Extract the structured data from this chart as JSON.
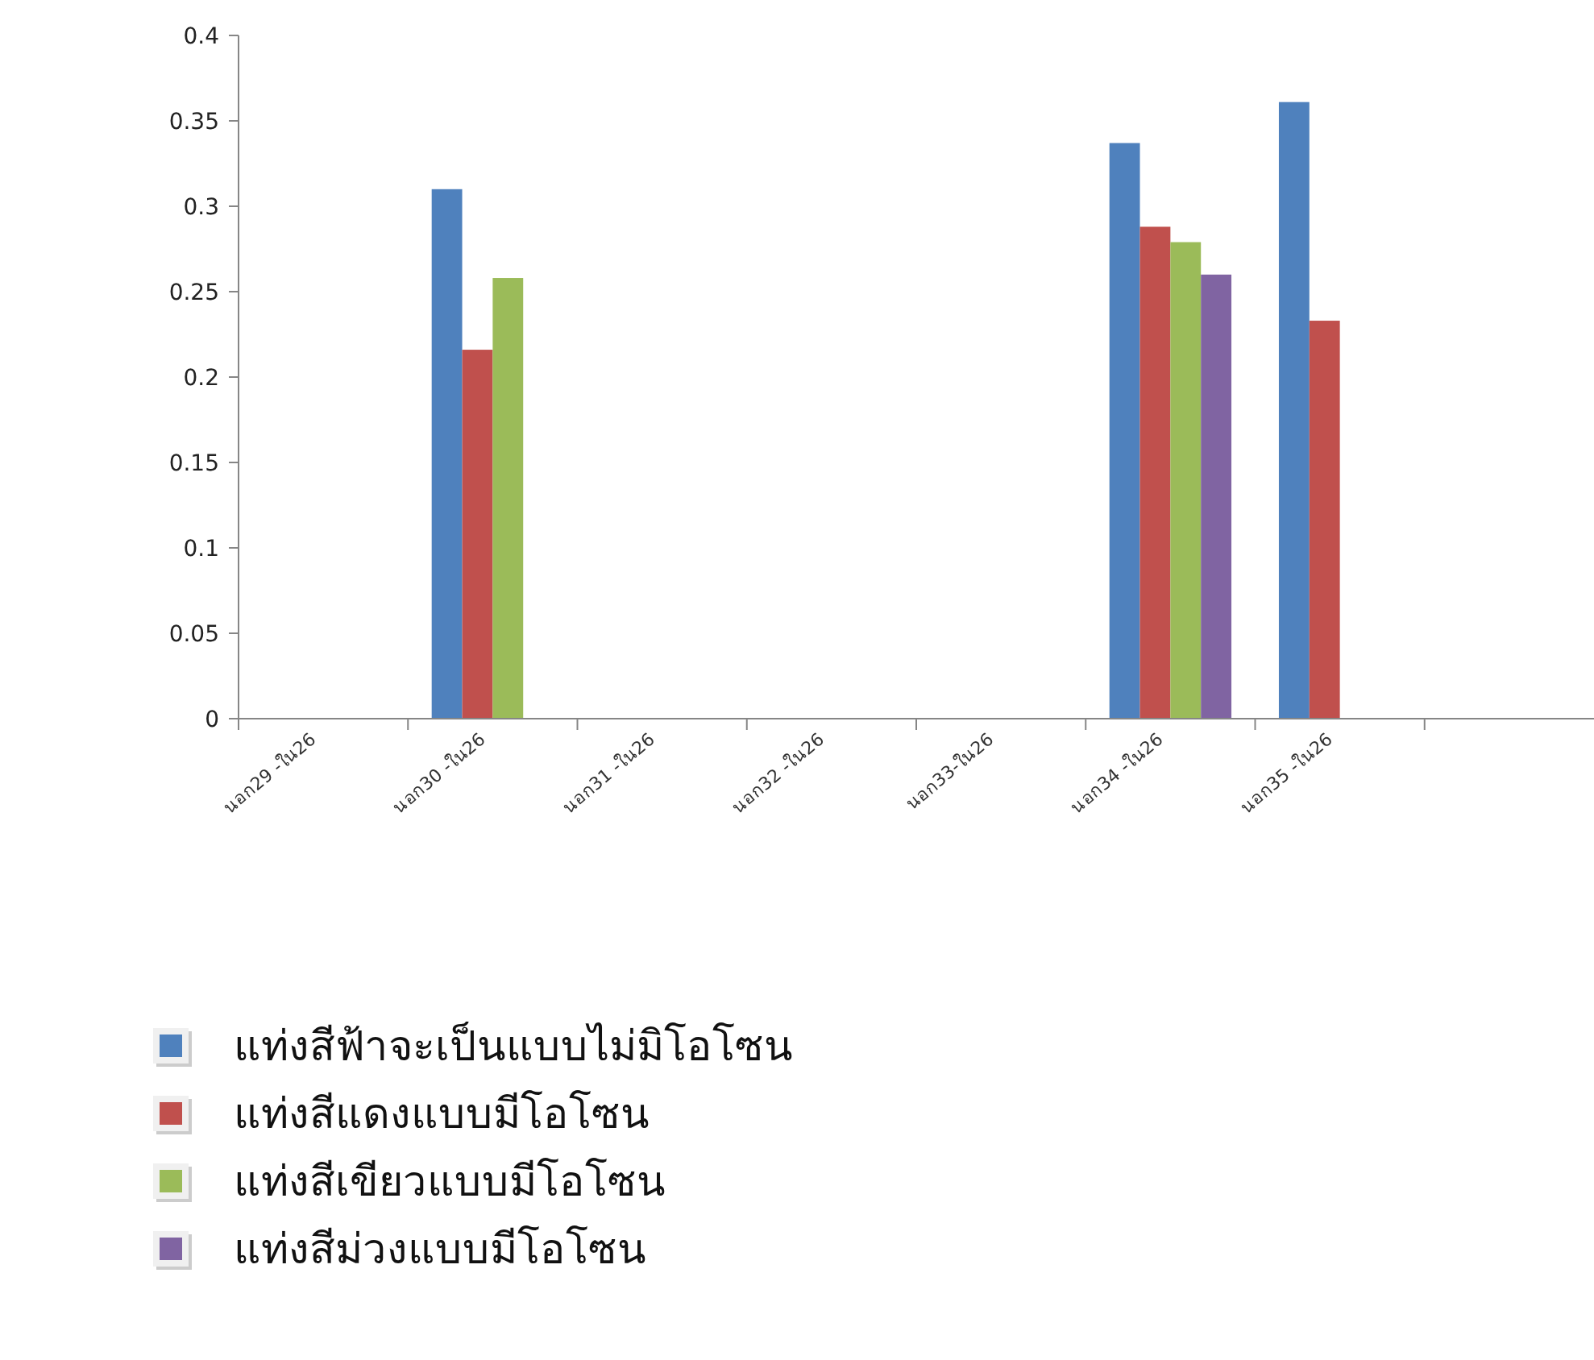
{
  "chart_data": {
    "type": "bar",
    "categories": [
      "นอก29 -ใน26",
      "นอก30 -ใน26",
      "นอก31 -ใน26",
      "นอก32 -ใน26",
      "นอก33-ใน26",
      "นอก34 -ใน26",
      "นอก35 -ใน26",
      null
    ],
    "series": [
      {
        "name": "แท่งสีฟ้าจะเป็นแบบไม่มิโอโซน",
        "color": "#4f81bd",
        "values": [
          null,
          0.31,
          null,
          null,
          null,
          0.337,
          0.361,
          null
        ]
      },
      {
        "name": "แท่งสีแดงแบบมีโอโซน",
        "color": "#c0504d",
        "values": [
          null,
          0.216,
          null,
          null,
          null,
          0.288,
          0.233,
          null
        ]
      },
      {
        "name": "แท่งสีเขียวแบบมีโอโซน",
        "color": "#9bbb59",
        "values": [
          null,
          0.258,
          null,
          null,
          null,
          0.279,
          null,
          null
        ]
      },
      {
        "name": "แท่งสีม่วงแบบมีโอโซน",
        "color": "#8064a2",
        "values": [
          null,
          null,
          null,
          null,
          null,
          0.26,
          null,
          null
        ]
      }
    ],
    "ylim": [
      0,
      0.4
    ],
    "yticks": [
      0,
      0.05,
      0.1,
      0.15,
      0.2,
      0.25,
      0.3,
      0.35,
      0.4
    ],
    "grid": false,
    "legend": "bottom left"
  }
}
